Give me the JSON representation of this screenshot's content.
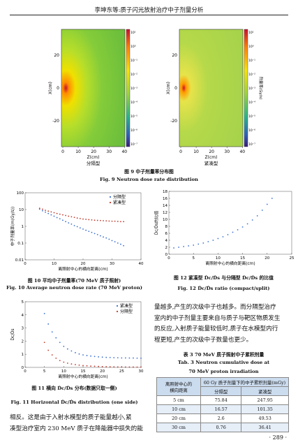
{
  "header": {
    "title": "李坤东等:质子闪光放射治疗中子剂量分析"
  },
  "fig9": {
    "left": {
      "sub": "分隔型"
    },
    "right": {
      "sub": "紧凑型",
      "cbar_label": "剂量率(Gy/s)"
    },
    "ylabel": "X(cm)",
    "xlabel": "Z(cm)",
    "xticks": [
      "0",
      "10",
      "20",
      "30",
      "40"
    ],
    "yticks": [
      "20",
      "0",
      "-20"
    ],
    "cbar_ticks": [
      "10¹",
      "10⁰",
      "10⁻¹",
      "10⁻²",
      "10⁻³",
      "10⁻⁴",
      "10⁻⁵",
      "10⁻⁶",
      "10⁻⁷"
    ],
    "cap_cn": "图 9   中子剂量率分布图",
    "cap_en": "Fig. 9    Neutron dose rate distribution"
  },
  "fig10": {
    "cap_cn": "图 10   平均中子剂量率(70 MeV 质子照射)",
    "cap_en": "Fig. 10    Average neutron dose rate (70 MeV proton)"
  },
  "fig11": {
    "cap_cn": "图 11   横向 Ḋc/Ḋs 分布(数据只取一侧)",
    "cap_en": "Fig. 11    Horizontal Ḋc/Ḋs distribution (one side)"
  },
  "fig12": {
    "cap_cn": "图 12   紧凑型 Ḋc/Ḋs 与分隔型 Ḋc/Ḋs 的比值",
    "cap_en": "Fig. 12    Ḋc/Ḋs ratio (compact/split)"
  },
  "chart_data": [
    {
      "id": "fig10",
      "type": "scatter",
      "xlabel": "离照射中心的横向距离(cm)",
      "ylabel": "中子剂量率(m(Gy/s))",
      "xlim": [
        0,
        40
      ],
      "ylim_log": [
        0.01,
        100
      ],
      "xticks": [
        0,
        10,
        20,
        30,
        40
      ],
      "yticks": [
        "100",
        "10",
        "1",
        "0.1",
        "0.01"
      ],
      "legend": "top-right",
      "series": [
        {
          "name": "分隔型",
          "color": "#3a6fd0",
          "x": [
            5,
            6,
            7,
            8,
            9,
            10,
            11,
            12,
            13,
            14,
            15,
            16,
            17,
            18,
            19,
            20,
            21,
            22,
            23,
            24,
            25,
            26,
            27,
            28,
            29,
            30,
            31,
            32,
            33,
            34
          ],
          "y": [
            10.5,
            8.5,
            7,
            5.8,
            4.8,
            4,
            3.3,
            2.8,
            2.3,
            1.9,
            1.6,
            1.35,
            1.1,
            0.95,
            0.8,
            0.68,
            0.58,
            0.5,
            0.43,
            0.37,
            0.32,
            0.27,
            0.23,
            0.2,
            0.17,
            0.14,
            0.12,
            0.1,
            0.085,
            0.07
          ]
        },
        {
          "name": "紧凑型",
          "color": "#c03a2b",
          "x": [
            5,
            6,
            7,
            8,
            9,
            10,
            11,
            12,
            13,
            14,
            15,
            16,
            17,
            18,
            19,
            20,
            21,
            22,
            23,
            24,
            25,
            26,
            27,
            28,
            29,
            30,
            31,
            32,
            33,
            34
          ],
          "y": [
            12,
            10.5,
            9,
            8,
            7.2,
            6.5,
            5.8,
            5.3,
            4.8,
            4.4,
            4,
            3.7,
            3.4,
            3.1,
            2.9,
            2.7,
            2.6,
            2.5,
            2.4,
            2.3,
            2.25,
            2.2,
            2.15,
            2.1,
            2.05,
            2.0,
            2.0,
            1.95,
            1.9,
            1.9
          ]
        }
      ]
    },
    {
      "id": "fig11",
      "type": "scatter",
      "xlabel": "离照射中心的横向距离(cm)",
      "ylabel": "Ḋc/Ḋs",
      "xlim": [
        0,
        30
      ],
      "ylim": [
        0,
        5
      ],
      "xticks": [
        0,
        5,
        10,
        15,
        20,
        25,
        30
      ],
      "yticks": [
        0,
        1,
        2,
        3,
        4,
        5
      ],
      "legend": "top-right",
      "series": [
        {
          "name": "紧凑型",
          "color": "#3a6fd0",
          "x": [
            5,
            6,
            7,
            8,
            9,
            10,
            11,
            12,
            13,
            14,
            15,
            16,
            17,
            18,
            19,
            20,
            21,
            22,
            23,
            24,
            25,
            26,
            27,
            28,
            29,
            30
          ],
          "y": [
            4.1,
            3.3,
            2.7,
            2.25,
            1.9,
            1.6,
            1.4,
            1.25,
            1.12,
            1.02,
            0.95,
            0.9,
            0.86,
            0.83,
            0.8,
            0.78,
            0.76,
            0.75,
            0.74,
            0.73,
            0.72,
            0.72,
            0.71,
            0.71,
            0.7,
            0.7
          ]
        },
        {
          "name": "分隔型",
          "color": "#c03a2b",
          "x": [
            5,
            6,
            7,
            8,
            9,
            10,
            11,
            12,
            13,
            14,
            15,
            16,
            17,
            18,
            19,
            20,
            21,
            22,
            23,
            24,
            25,
            26,
            27,
            28,
            29,
            30
          ],
          "y": [
            1.9,
            1.3,
            0.95,
            0.7,
            0.52,
            0.4,
            0.32,
            0.26,
            0.21,
            0.17,
            0.14,
            0.12,
            0.1,
            0.085,
            0.07,
            0.06,
            0.05,
            0.045,
            0.04,
            0.035,
            0.03,
            0.028,
            0.025,
            0.022,
            0.02,
            0.018
          ]
        }
      ]
    },
    {
      "id": "fig12",
      "type": "scatter",
      "xlabel": "离照射中心的横向距离(cm)",
      "ylabel": "Ḋc/Ḋs的比值",
      "xlim": [
        0,
        25
      ],
      "ylim": [
        0,
        18
      ],
      "xticks": [
        0,
        5,
        10,
        15,
        20,
        25
      ],
      "yticks": [
        0,
        2,
        4,
        6,
        8,
        10,
        12,
        14,
        16,
        18
      ],
      "series": [
        {
          "name": "",
          "color": "#3a6fd0",
          "x": [
            1,
            2,
            3,
            4,
            5,
            6,
            7,
            8,
            9,
            10,
            11,
            12,
            13,
            14,
            15,
            16,
            17,
            18,
            19,
            20,
            21
          ],
          "y": [
            1.8,
            2.0,
            2.2,
            2.4,
            2.6,
            2.9,
            3.2,
            3.6,
            4.0,
            4.5,
            5.0,
            5.6,
            6.3,
            7.0,
            7.8,
            8.7,
            9.8,
            11.0,
            12.6,
            14.3,
            16.0
          ]
        }
      ]
    }
  ],
  "body_left": {
    "lines": [
      "相反。这是由于入射水模型的质子能量越小,紧",
      "凑型治疗室内 230 MeV 质子在降能器中损失的能"
    ]
  },
  "body_right": {
    "lines": [
      "量越多,产生的次级中子也越多。而分隔型治疗",
      "室内的中子剂量主要来自与质子与靶区物质发生",
      "的反应,入射质子能量较低时,质子在水模型内行",
      "程更短,产生的次级中子数量也更少。"
    ]
  },
  "table3": {
    "cap_cn": "表 3   70 MeV 质子照射中子累积剂量",
    "cap_en1": "Tab. 3    Neutron cumulative dose at",
    "cap_en2": "70 MeV proton irradiation",
    "head1": "离照射中心的",
    "head1b": "横向距离",
    "head2": "60 Gy 质子剂量下的中子累积剂量(mGy)",
    "sub_a": "分隔型",
    "sub_b": "紧凑型",
    "rows": [
      {
        "d": "5 cm",
        "a": "75.84",
        "b": "247.95"
      },
      {
        "d": "10 cm",
        "a": "16.57",
        "b": "101.35"
      },
      {
        "d": "20 cm",
        "a": "2.6",
        "b": "49.53"
      },
      {
        "d": "30 cm",
        "a": "0.76",
        "b": "36.41"
      }
    ]
  },
  "footer": {
    "page": "· 289 ·"
  }
}
